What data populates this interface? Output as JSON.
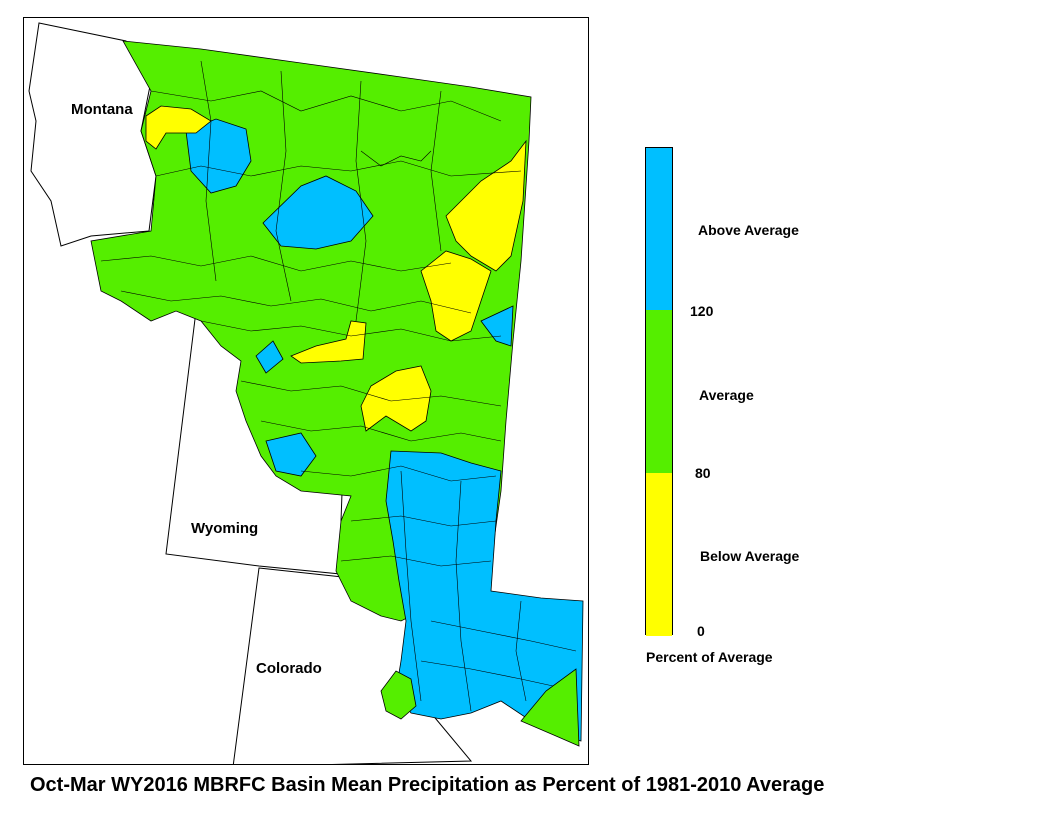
{
  "map": {
    "states": {
      "montana": "Montana",
      "wyoming": "Wyoming",
      "colorado": "Colorado"
    },
    "colors": {
      "above": "#00bfff",
      "average": "#55ee00",
      "below": "#ffff00",
      "border": "#000000"
    }
  },
  "legend": {
    "title": "Percent of Average",
    "categories": [
      {
        "label": "Above Average",
        "range": ">120",
        "color": "#00bfff"
      },
      {
        "label": "Average",
        "range": "80-120",
        "color": "#55ee00"
      },
      {
        "label": "Below Average",
        "range": "0-80",
        "color": "#ffff00"
      }
    ],
    "ticks": [
      "120",
      "80",
      "0"
    ]
  },
  "caption": "Oct-Mar WY2016 MBRFC Basin Mean Precipitation as Percent of 1981-2010 Average"
}
